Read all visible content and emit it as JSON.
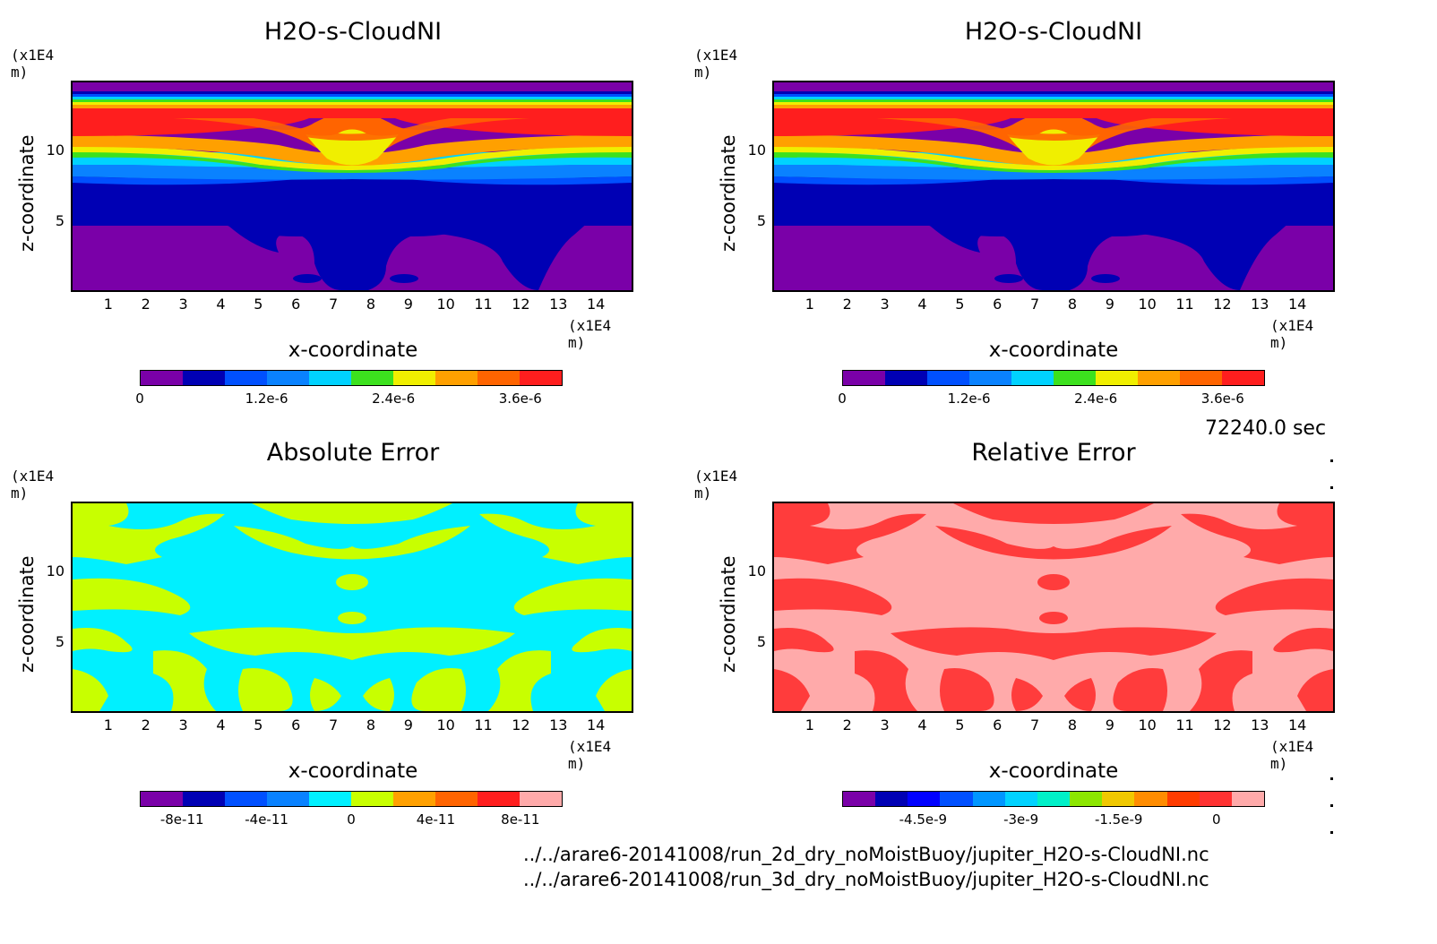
{
  "chart_data": [
    {
      "type": "heatmap",
      "title": "H2O-s-CloudNI",
      "xlabel": "x-coordinate",
      "ylabel": "z-coordinate",
      "x_unit": "(x1E4 m)",
      "y_unit": "(x1E4 m)",
      "xlim": [
        0,
        15
      ],
      "ylim": [
        0,
        14.5
      ],
      "x_ticks": [
        "1",
        "2",
        "3",
        "4",
        "5",
        "6",
        "7",
        "8",
        "9",
        "10",
        "11",
        "12",
        "13",
        "14"
      ],
      "y_ticks": [
        "5",
        "10"
      ],
      "colorbar": {
        "colors": [
          "#7a00a8",
          "#0000b4",
          "#0050ff",
          "#0a82ff",
          "#00d2ff",
          "#3ce11e",
          "#f0ef00",
          "#ffa000",
          "#ff6400",
          "#ff1e1e"
        ],
        "labels": [
          "0",
          "1.2e-6",
          "2.4e-6",
          "3.6e-6"
        ]
      }
    },
    {
      "type": "heatmap",
      "title": "H2O-s-CloudNI",
      "xlabel": "x-coordinate",
      "ylabel": "z-coordinate",
      "x_unit": "(x1E4 m)",
      "y_unit": "(x1E4 m)",
      "xlim": [
        0,
        15
      ],
      "ylim": [
        0,
        14.5
      ],
      "x_ticks": [
        "1",
        "2",
        "3",
        "4",
        "5",
        "6",
        "7",
        "8",
        "9",
        "10",
        "11",
        "12",
        "13",
        "14"
      ],
      "y_ticks": [
        "5",
        "10"
      ],
      "colorbar": {
        "colors": [
          "#7a00a8",
          "#0000b4",
          "#0050ff",
          "#0a82ff",
          "#00d2ff",
          "#3ce11e",
          "#f0ef00",
          "#ffa000",
          "#ff6400",
          "#ff1e1e"
        ],
        "labels": [
          "0",
          "1.2e-6",
          "2.4e-6",
          "3.6e-6"
        ]
      }
    },
    {
      "type": "heatmap",
      "title": "Absolute Error",
      "xlabel": "x-coordinate",
      "ylabel": "z-coordinate",
      "x_unit": "(x1E4 m)",
      "y_unit": "(x1E4 m)",
      "xlim": [
        0,
        15
      ],
      "ylim": [
        0,
        14.5
      ],
      "x_ticks": [
        "1",
        "2",
        "3",
        "4",
        "5",
        "6",
        "7",
        "8",
        "9",
        "10",
        "11",
        "12",
        "13",
        "14"
      ],
      "y_ticks": [
        "5",
        "10"
      ],
      "colorbar": {
        "colors": [
          "#7a00a8",
          "#0000b4",
          "#0050ff",
          "#0a82ff",
          "#00f0ff",
          "#c8ff00",
          "#ffa000",
          "#ff6400",
          "#ff1e1e",
          "#ffaaaa"
        ],
        "labels": [
          "-8e-11",
          "-4e-11",
          "0",
          "4e-11",
          "8e-11"
        ]
      }
    },
    {
      "type": "heatmap",
      "title": "Relative Error",
      "xlabel": "x-coordinate",
      "ylabel": "z-coordinate",
      "x_unit": "(x1E4 m)",
      "y_unit": "(x1E4 m)",
      "xlim": [
        0,
        15
      ],
      "ylim": [
        0,
        14.5
      ],
      "x_ticks": [
        "1",
        "2",
        "3",
        "4",
        "5",
        "6",
        "7",
        "8",
        "9",
        "10",
        "11",
        "12",
        "13",
        "14"
      ],
      "y_ticks": [
        "5",
        "10"
      ],
      "colorbar": {
        "colors": [
          "#7a00a8",
          "#0000b4",
          "#0000ff",
          "#0050ff",
          "#0096ff",
          "#00d2ff",
          "#00f0c8",
          "#8ce600",
          "#f0c800",
          "#ff8c00",
          "#ff3c00",
          "#ff3232",
          "#ffaaaa"
        ],
        "labels": [
          "-4.5e-9",
          "-3e-9",
          "-1.5e-9",
          "0"
        ]
      }
    }
  ],
  "footer": {
    "time": "72240.0 sec",
    "file1": "../../arare6-20141008/run_2d_dry_noMoistBuoy/jupiter_H2O-s-CloudNI.nc",
    "file2": "../../arare6-20141008/run_3d_dry_noMoistBuoy/jupiter_H2O-s-CloudNI.nc"
  }
}
